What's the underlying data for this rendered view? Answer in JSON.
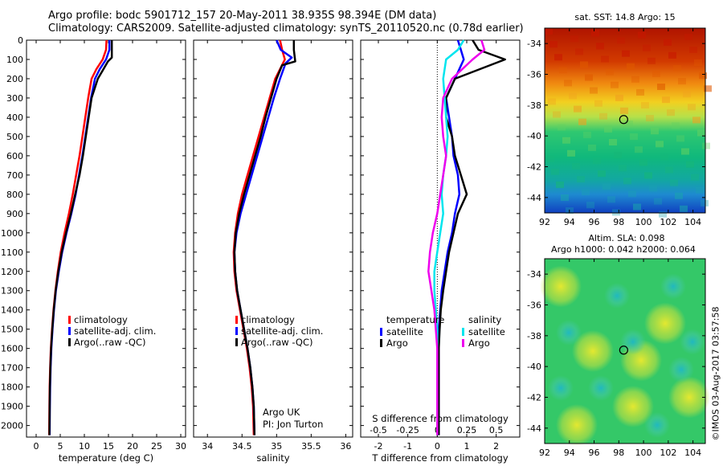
{
  "header": {
    "line1": "Argo profile: bodc 5901712_157 20-May-2011 38.935S 98.394E (DM data)",
    "line2": "Climatology: CARS2009. Satellite-adjusted climatology: synTS_20110520.nc (0.78d earlier)"
  },
  "colors": {
    "climatology": "#ff0000",
    "satellite": "#0000ff",
    "argo": "#000000",
    "satellite_salinity": "#00e5ee",
    "argo_salinity": "#ee00ee"
  },
  "chart_data": [
    {
      "type": "line",
      "name": "temperature_panel",
      "xlabel": "temperature (deg C)",
      "xlim": [
        -2,
        31
      ],
      "xticks": [
        0,
        5,
        10,
        15,
        20,
        25,
        30
      ],
      "ylim": [
        0,
        2060
      ],
      "y_reversed": true,
      "yticks": [
        0,
        100,
        200,
        300,
        400,
        500,
        600,
        700,
        800,
        900,
        1000,
        1100,
        1200,
        1300,
        1400,
        1500,
        1600,
        1700,
        1800,
        1900,
        2000
      ],
      "legend": [
        "climatology",
        "satellite-adj. clim.",
        "Argo(..raw -QC)"
      ],
      "series": [
        {
          "name": "climatology",
          "color": "#ff0000",
          "x": [
            14.6,
            14.5,
            13.8,
            12.5,
            11.5,
            10.8,
            10.2,
            9.6,
            9.0,
            8.3,
            7.6,
            6.8,
            5.9,
            5.1,
            4.5,
            4.0,
            3.6,
            3.3,
            3.05,
            2.9,
            2.8,
            2.75,
            2.7
          ],
          "y": [
            0,
            50,
            100,
            150,
            200,
            300,
            400,
            500,
            600,
            700,
            800,
            900,
            1000,
            1100,
            1200,
            1300,
            1400,
            1500,
            1600,
            1700,
            1800,
            1900,
            2050
          ]
        },
        {
          "name": "satellite-adj. clim.",
          "color": "#0000ff",
          "x": [
            15.2,
            15.2,
            14.5,
            13.2,
            12.2,
            11.4,
            10.8,
            10.2,
            9.6,
            8.9,
            8.2,
            7.3,
            6.3,
            5.4,
            4.7,
            4.1,
            3.7,
            3.4,
            3.15,
            3.0,
            2.9,
            2.85,
            2.8
          ],
          "y": [
            0,
            50,
            100,
            150,
            200,
            300,
            400,
            500,
            600,
            700,
            800,
            900,
            1000,
            1100,
            1200,
            1300,
            1400,
            1500,
            1600,
            1700,
            1800,
            1900,
            2050
          ]
        },
        {
          "name": "Argo(..raw -QC)",
          "color": "#000000",
          "x": [
            15.7,
            15.7,
            15.7,
            14.9,
            12.8,
            11.5,
            10.9,
            10.3,
            9.7,
            9.0,
            8.1,
            7.2,
            6.2,
            5.3,
            4.6,
            4.05,
            3.65,
            3.35,
            3.1,
            2.95,
            2.85,
            2.8,
            2.75
          ],
          "y": [
            0,
            50,
            90,
            110,
            200,
            300,
            400,
            500,
            600,
            700,
            800,
            900,
            1000,
            1100,
            1200,
            1300,
            1400,
            1500,
            1600,
            1700,
            1800,
            1900,
            2050
          ]
        }
      ]
    },
    {
      "type": "line",
      "name": "salinity_panel",
      "xlabel": "salinity",
      "xlim": [
        33.8,
        36.1
      ],
      "xticks": [
        34,
        34.5,
        35,
        35.5,
        36
      ],
      "xtick_labels": [
        "34",
        "34.5",
        "35",
        "35.5",
        "36"
      ],
      "ylim": [
        0,
        2060
      ],
      "y_reversed": true,
      "legend": [
        "climatology",
        "satellite-adj. clim.",
        "Argo(..raw -QC)"
      ],
      "annotation": [
        "Argo UK",
        "PI: Jon Turton"
      ],
      "series": [
        {
          "name": "climatology",
          "color": "#ff0000",
          "x": [
            35.05,
            35.08,
            35.12,
            35.05,
            34.98,
            34.9,
            34.82,
            34.74,
            34.66,
            34.58,
            34.5,
            34.44,
            34.4,
            34.38,
            34.39,
            34.42,
            34.47,
            34.52,
            34.57,
            34.61,
            34.64,
            34.66,
            34.67
          ],
          "y": [
            0,
            50,
            100,
            150,
            200,
            300,
            400,
            500,
            600,
            700,
            800,
            900,
            1000,
            1100,
            1200,
            1300,
            1400,
            1500,
            1600,
            1700,
            1800,
            1900,
            2050
          ]
        },
        {
          "name": "satellite-adj. clim.",
          "color": "#0000ff",
          "x": [
            35.0,
            35.06,
            35.22,
            35.13,
            35.05,
            34.96,
            34.88,
            34.8,
            34.72,
            34.64,
            34.56,
            34.48,
            34.42,
            34.39,
            34.4,
            34.43,
            34.48,
            34.53,
            34.58,
            34.62,
            34.65,
            34.67,
            34.68
          ],
          "y": [
            0,
            50,
            90,
            120,
            200,
            300,
            400,
            500,
            600,
            700,
            800,
            900,
            1000,
            1100,
            1200,
            1300,
            1400,
            1500,
            1600,
            1700,
            1800,
            1900,
            2050
          ]
        },
        {
          "name": "Argo(..raw -QC)",
          "color": "#000000",
          "x": [
            35.25,
            35.25,
            35.27,
            35.08,
            35.0,
            34.92,
            34.84,
            34.77,
            34.69,
            34.61,
            34.53,
            34.46,
            34.41,
            34.39,
            34.4,
            34.43,
            34.48,
            34.53,
            34.58,
            34.62,
            34.65,
            34.67,
            34.68
          ],
          "y": [
            0,
            50,
            110,
            130,
            200,
            300,
            400,
            500,
            600,
            700,
            800,
            900,
            1000,
            1100,
            1200,
            1300,
            1400,
            1500,
            1600,
            1700,
            1800,
            1900,
            2050
          ]
        }
      ]
    },
    {
      "type": "line",
      "name": "difference_panel",
      "xlabel": "T difference from climatology",
      "xlim": [
        -2.6,
        2.8
      ],
      "xticks": [
        -2,
        -1,
        0,
        1,
        2
      ],
      "top_xlabel": "S difference from climatology",
      "top_xticks": [
        -0.5,
        -0.25,
        0,
        0.25,
        0.5
      ],
      "top_xtick_labels": [
        "-0.5",
        "-0.25",
        "0",
        "0.25",
        "0.5"
      ],
      "ylim": [
        0,
        2060
      ],
      "y_reversed": true,
      "legend_temperature": {
        "title": "temperature",
        "items": [
          "satellite",
          "Argo"
        ]
      },
      "legend_salinity": {
        "title": "salinity",
        "items": [
          "satellite",
          "Argo"
        ]
      },
      "series": [
        {
          "name": "temperature satellite",
          "color": "#0000ff",
          "x": [
            0.7,
            0.8,
            0.9,
            0.6,
            0.3,
            0.4,
            0.5,
            0.55,
            0.7,
            0.75,
            0.6,
            0.5,
            0.35,
            0.25,
            0.15,
            0.1,
            0.05,
            0.05,
            0.05,
            0.05,
            0.05,
            0.05,
            0.05
          ],
          "y": [
            0,
            50,
            100,
            200,
            300,
            400,
            500,
            600,
            700,
            800,
            900,
            1000,
            1100,
            1200,
            1300,
            1400,
            1500,
            1600,
            1700,
            1800,
            1900,
            2000,
            2050
          ]
        },
        {
          "name": "temperature Argo",
          "color": "#000000",
          "x": [
            1.2,
            1.4,
            2.3,
            0.6,
            0.3,
            0.3,
            0.5,
            0.6,
            0.8,
            1.0,
            0.7,
            0.55,
            0.4,
            0.3,
            0.2,
            0.12,
            0.08,
            0.05,
            0.05,
            0.05,
            0.05,
            0.05,
            0.05
          ],
          "y": [
            0,
            50,
            100,
            200,
            300,
            400,
            500,
            600,
            700,
            800,
            900,
            1000,
            1100,
            1200,
            1300,
            1400,
            1500,
            1600,
            1700,
            1800,
            1900,
            2000,
            2050
          ]
        },
        {
          "name": "salinity satellite",
          "color": "#00e5ee",
          "x": [
            0.9,
            0.7,
            0.3,
            0.2,
            0.25,
            0.3,
            0.35,
            0.3,
            0.2,
            0.15,
            0.2,
            0.1,
            0.0,
            -0.1,
            -0.1,
            -0.05,
            0.0,
            0.0,
            0.0,
            0.0,
            0.0,
            0.0,
            0.0
          ],
          "y": [
            0,
            50,
            100,
            200,
            300,
            400,
            500,
            600,
            700,
            800,
            900,
            1000,
            1100,
            1200,
            1300,
            1400,
            1500,
            1600,
            1700,
            1800,
            1900,
            2000,
            2050
          ]
        },
        {
          "name": "salinity Argo",
          "color": "#ee00ee",
          "x": [
            1.5,
            1.6,
            1.2,
            0.5,
            0.2,
            0.15,
            0.2,
            0.3,
            0.2,
            0.1,
            0.0,
            -0.15,
            -0.25,
            -0.3,
            -0.2,
            -0.1,
            -0.05,
            0.0,
            0.0,
            0.0,
            0.0,
            0.0,
            0.0
          ],
          "y": [
            0,
            50,
            100,
            200,
            300,
            400,
            500,
            600,
            700,
            800,
            900,
            1000,
            1100,
            1200,
            1300,
            1400,
            1500,
            1600,
            1700,
            1800,
            1900,
            2000,
            2050
          ]
        }
      ]
    },
    {
      "type": "heatmap",
      "name": "sst_map",
      "title": "sat. SST: 14.8 Argo: 15",
      "xlim": [
        92,
        105
      ],
      "ylim": [
        -45,
        -33
      ],
      "xticks": [
        92,
        94,
        96,
        98,
        100,
        102,
        104
      ],
      "yticks": [
        -34,
        -36,
        -38,
        -40,
        -42,
        -44
      ],
      "marker": {
        "lon": 98.394,
        "lat": -38.935
      }
    },
    {
      "type": "heatmap",
      "name": "sla_map",
      "title": "Altim. SLA: 0.098",
      "subtitle": "Argo h1000: 0.042 h2000: 0.064",
      "xlim": [
        92,
        105
      ],
      "ylim": [
        -45,
        -33
      ],
      "xticks": [
        92,
        94,
        96,
        98,
        100,
        102,
        104
      ],
      "yticks": [
        -34,
        -36,
        -38,
        -40,
        -42,
        -44
      ],
      "marker": {
        "lon": 98.394,
        "lat": -38.935
      }
    }
  ],
  "footer_stamp": "©IMOS 03-Aug-2017 03:57:58"
}
